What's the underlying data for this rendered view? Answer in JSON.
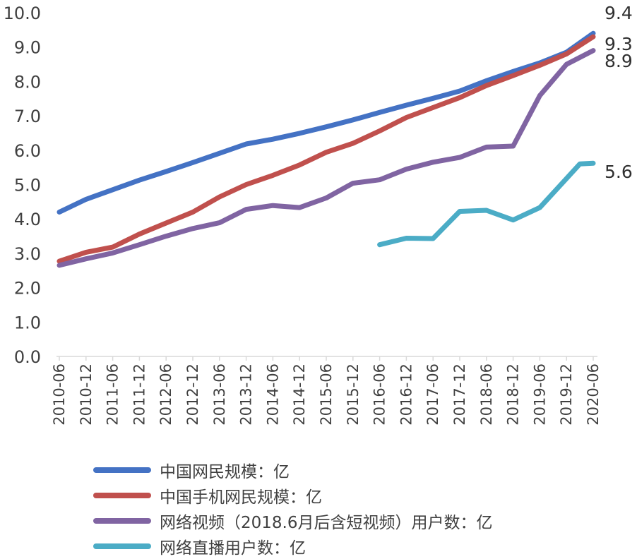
{
  "chart_data": {
    "type": "line",
    "title": "",
    "xlabel": "",
    "ylabel": "",
    "ylim": [
      0,
      10
    ],
    "yticks": [
      "0.0",
      "1.0",
      "2.0",
      "3.0",
      "4.0",
      "5.0",
      "6.0",
      "7.0",
      "8.0",
      "9.0",
      "10.0"
    ],
    "categories": [
      "2010-06",
      "2010-12",
      "2011-06",
      "2011-12",
      "2012-06",
      "2012-12",
      "2013-06",
      "2013-12",
      "2014-06",
      "2014-12",
      "2015-06",
      "2015-12",
      "2016-06",
      "2016-12",
      "2017-06",
      "2017-12",
      "2018-06",
      "2018-12",
      "2019-06",
      "2019-12",
      "2020-06"
    ],
    "grid": false,
    "legend_position": "bottom",
    "series": [
      {
        "name": "中国网民规模：亿",
        "color": "#4472C4",
        "end_label": "9.4",
        "points": [
          [
            "2010-06",
            4.2
          ],
          [
            "2010-12",
            4.57
          ],
          [
            "2011-06",
            4.85
          ],
          [
            "2011-12",
            5.13
          ],
          [
            "2012-06",
            5.38
          ],
          [
            "2012-12",
            5.64
          ],
          [
            "2013-06",
            5.91
          ],
          [
            "2013-12",
            6.18
          ],
          [
            "2014-06",
            6.32
          ],
          [
            "2014-12",
            6.49
          ],
          [
            "2015-06",
            6.68
          ],
          [
            "2015-12",
            6.88
          ],
          [
            "2016-06",
            7.1
          ],
          [
            "2016-12",
            7.31
          ],
          [
            "2017-06",
            7.51
          ],
          [
            "2017-12",
            7.72
          ],
          [
            "2018-06",
            8.02
          ],
          [
            "2018-12",
            8.29
          ],
          [
            "2019-06",
            8.54
          ],
          [
            "2019-12",
            8.85
          ],
          [
            "2020-06",
            9.4
          ]
        ]
      },
      {
        "name": "中国手机网民规模：亿",
        "color": "#C0504D",
        "end_label": "9.3",
        "points": [
          [
            "2010-06",
            2.77
          ],
          [
            "2010-12",
            3.03
          ],
          [
            "2011-06",
            3.18
          ],
          [
            "2011-12",
            3.56
          ],
          [
            "2012-06",
            3.88
          ],
          [
            "2012-12",
            4.2
          ],
          [
            "2013-06",
            4.64
          ],
          [
            "2013-12",
            5.0
          ],
          [
            "2014-06",
            5.27
          ],
          [
            "2014-12",
            5.57
          ],
          [
            "2015-06",
            5.94
          ],
          [
            "2015-12",
            6.2
          ],
          [
            "2016-06",
            6.56
          ],
          [
            "2016-12",
            6.95
          ],
          [
            "2017-06",
            7.24
          ],
          [
            "2017-12",
            7.53
          ],
          [
            "2018-06",
            7.88
          ],
          [
            "2018-12",
            8.17
          ],
          [
            "2019-06",
            8.47
          ],
          [
            "2019-12",
            8.8
          ],
          [
            "2020-06",
            9.3
          ]
        ]
      },
      {
        "name": "网络视频（2018.6月后含短视频）用户数：亿",
        "color": "#8064A2",
        "end_label": "8.9",
        "points": [
          [
            "2010-06",
            2.65
          ],
          [
            "2010-12",
            2.84
          ],
          [
            "2011-06",
            3.01
          ],
          [
            "2011-12",
            3.25
          ],
          [
            "2012-06",
            3.5
          ],
          [
            "2012-12",
            3.72
          ],
          [
            "2013-06",
            3.89
          ],
          [
            "2013-12",
            4.28
          ],
          [
            "2014-06",
            4.39
          ],
          [
            "2014-12",
            4.33
          ],
          [
            "2015-06",
            4.61
          ],
          [
            "2015-12",
            5.04
          ],
          [
            "2016-06",
            5.14
          ],
          [
            "2016-12",
            5.45
          ],
          [
            "2017-06",
            5.65
          ],
          [
            "2017-12",
            5.79
          ],
          [
            "2018-06",
            6.09
          ],
          [
            "2018-12",
            6.12
          ],
          [
            "2019-06",
            7.59
          ],
          [
            "2019-12",
            8.5
          ],
          [
            "2020-06",
            8.9
          ]
        ]
      },
      {
        "name": "网络直播用户数：亿",
        "color": "#4BACC6",
        "end_label": "5.6",
        "points": [
          [
            "2016-06",
            3.25
          ],
          [
            "2016-12",
            3.44
          ],
          [
            "2017-06",
            3.43
          ],
          [
            "2017-12",
            4.22
          ],
          [
            "2018-06",
            4.25
          ],
          [
            "2018-12",
            3.97
          ],
          [
            "2019-06",
            4.33
          ],
          [
            "2020-03",
            5.6
          ],
          [
            "2020-06",
            5.62
          ]
        ]
      }
    ]
  }
}
